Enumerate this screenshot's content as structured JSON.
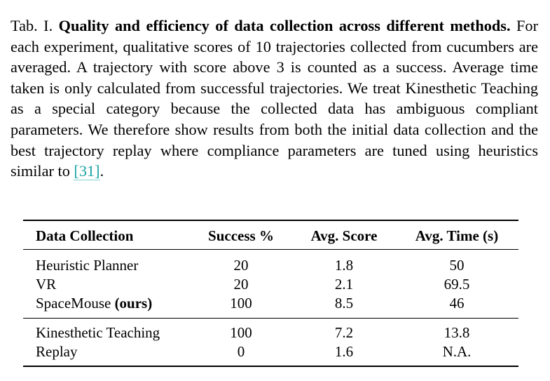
{
  "caption": {
    "label": "Tab. I.",
    "title": "Quality and efficiency of data collection across different methods.",
    "body": "For each experiment, qualitative scores of 10 trajectories collected from cucumbers are averaged. A trajectory with score above 3 is counted as a success. Average time taken is only calculated from successful trajectories. We treat Kinesthetic Teaching as a special category because the collected data has ambiguous compliant parameters. We therefore show results from both the initial data collection and the best trajectory replay where compliance parameters are tuned using heuristics similar to",
    "citation": "[31]",
    "end": "."
  },
  "table": {
    "header": [
      "Data Collection",
      "Success %",
      "Avg. Score",
      "Avg. Time (s)"
    ],
    "groups": [
      [
        [
          "Heuristic Planner",
          "20",
          "1.8",
          "50"
        ],
        [
          "VR",
          "20",
          "2.1",
          "69.5"
        ],
        [
          {
            "name": "SpaceMouse",
            "note": "(ours)"
          },
          "100",
          "8.5",
          "46"
        ]
      ],
      [
        [
          "Kinesthetic Teaching",
          "100",
          "7.2",
          "13.8"
        ],
        [
          "Replay",
          "0",
          "1.6",
          "N.A."
        ]
      ]
    ]
  }
}
